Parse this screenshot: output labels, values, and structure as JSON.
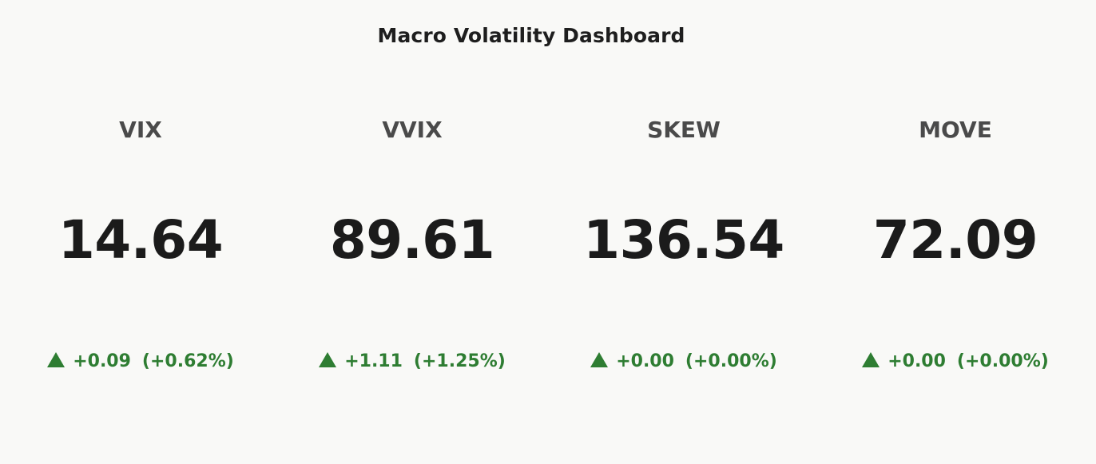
{
  "title": "Macro Volatility Dashboard",
  "colors": {
    "background": "#f9f9f7",
    "up": "#2e7d32",
    "label": "#4a4a4a",
    "value": "#1b1b1b"
  },
  "tiles": [
    {
      "name": "VIX",
      "value": "14.64",
      "change": "+0.09",
      "pct": "(+0.62%)",
      "direction": "up",
      "icon": "triangle-up-icon"
    },
    {
      "name": "VVIX",
      "value": "89.61",
      "change": "+1.11",
      "pct": "(+1.25%)",
      "direction": "up",
      "icon": "triangle-up-icon"
    },
    {
      "name": "SKEW",
      "value": "136.54",
      "change": "+0.00",
      "pct": "(+0.00%)",
      "direction": "up",
      "icon": "triangle-up-icon"
    },
    {
      "name": "MOVE",
      "value": "72.09",
      "change": "+0.00",
      "pct": "(+0.00%)",
      "direction": "up",
      "icon": "triangle-up-icon"
    }
  ]
}
